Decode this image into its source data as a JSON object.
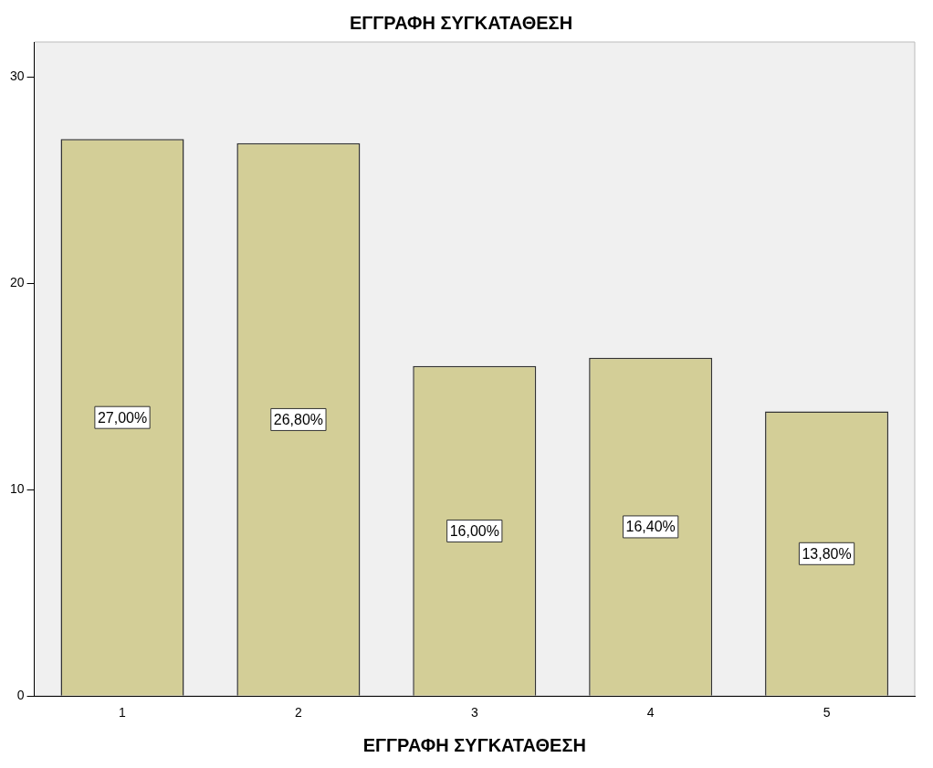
{
  "chart_data": {
    "type": "bar",
    "title": "ΕΓΓΡΑΦΗ ΣΥΓΚΑΤΑΘΕΣΗ",
    "xlabel": "ΕΓΓΡΑΦΗ ΣΥΓΚΑΤΑΘΕΣΗ",
    "categories": [
      "1",
      "2",
      "3",
      "4",
      "5"
    ],
    "values": [
      27.0,
      26.8,
      16.0,
      16.4,
      13.8
    ],
    "value_labels": [
      "27,00%",
      "26,80%",
      "16,00%",
      "16,40%",
      "13,80%"
    ],
    "color": "#d3ce97",
    "ylim": [
      0,
      31.7
    ],
    "yticks": [
      0,
      10,
      20,
      30
    ],
    "grid": false,
    "legend": false
  }
}
